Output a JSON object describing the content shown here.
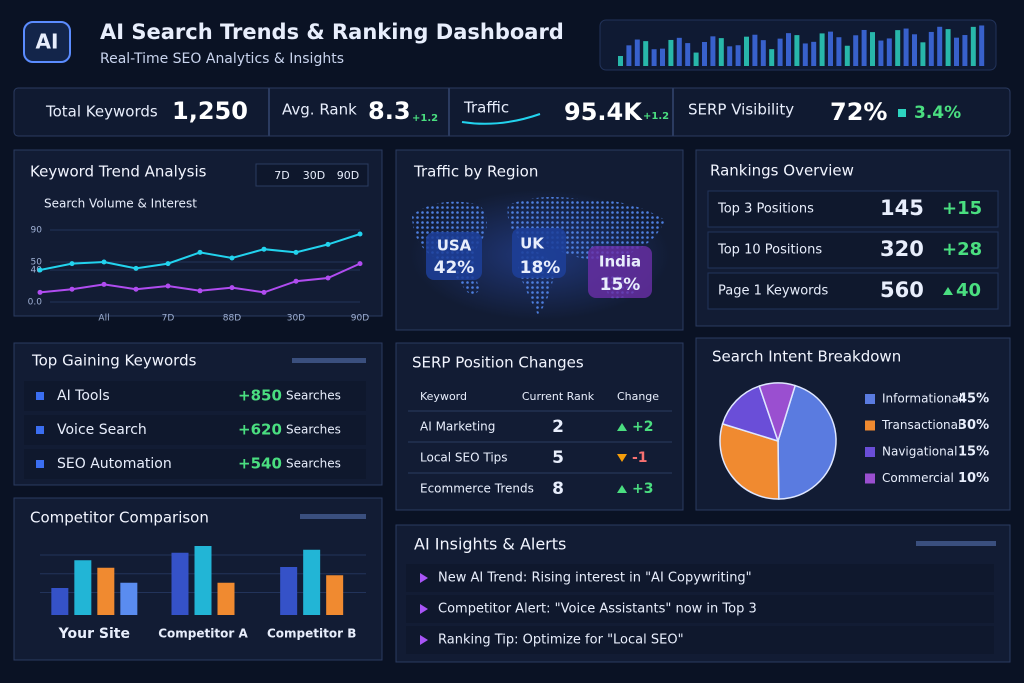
{
  "header": {
    "logo": "AI",
    "title": "AI Search Trends & Ranking Dashboard",
    "subtitle": "Real-Time SEO Analytics & Insights"
  },
  "kpis": [
    {
      "label": "Total Keywords",
      "value": "1,250"
    },
    {
      "label": "Avg. Rank",
      "value": "8.3",
      "delta": "+1.2"
    },
    {
      "label": "Traffic",
      "value": "95.4K",
      "delta": "+1.2"
    },
    {
      "label": "SERP Visibility",
      "value": "72%",
      "delta": "3.4%"
    }
  ],
  "keyword_trend": {
    "title": "Keyword Trend Analysis",
    "ranges": [
      "7D",
      "30D",
      "90D"
    ],
    "chart_data": {
      "type": "line",
      "subtitle": "Search Volume & Interest",
      "x": [
        0,
        1,
        2,
        3,
        4,
        5,
        6,
        7,
        8,
        9,
        10
      ],
      "xlim": [
        0,
        10
      ],
      "xticks": [
        {
          "value": 2,
          "label": "All"
        },
        {
          "value": 4,
          "label": "7D"
        },
        {
          "value": 6,
          "label": "88D"
        },
        {
          "value": 8,
          "label": "30D"
        },
        {
          "value": 10,
          "label": "90D"
        }
      ],
      "ylim": [
        0,
        100
      ],
      "yticks": [
        {
          "value": 0,
          "label": "0.0"
        },
        40,
        50,
        90
      ],
      "series": [
        {
          "color": "#22d3ee",
          "values": [
            40,
            48,
            50,
            42,
            48,
            62,
            55,
            66,
            62,
            72,
            85
          ]
        },
        {
          "color": "#b04cf0",
          "values": [
            12,
            16,
            22,
            16,
            20,
            14,
            18,
            12,
            26,
            30,
            48
          ]
        }
      ]
    }
  },
  "traffic_by_region": {
    "title": "Traffic by Region",
    "regions": [
      {
        "name": "USA",
        "share": "42%"
      },
      {
        "name": "UK",
        "share": "18%"
      },
      {
        "name": "India",
        "share": "15%"
      }
    ]
  },
  "rankings_overview": {
    "title": "Rankings Overview",
    "rows": [
      {
        "label": "Top 3 Positions",
        "value": "145",
        "delta": "+15"
      },
      {
        "label": "Top 10 Positions",
        "value": "320",
        "delta": "+28"
      },
      {
        "label": "Page 1 Keywords",
        "value": "560",
        "delta": "40"
      }
    ]
  },
  "top_gaining": {
    "title": "Top Gaining Keywords",
    "items": [
      {
        "keyword": "AI Tools",
        "change": "+850",
        "unit": "Searches"
      },
      {
        "keyword": "Voice Search",
        "change": "+620",
        "unit": "Searches"
      },
      {
        "keyword": "SEO Automation",
        "change": "+540",
        "unit": "Searches"
      }
    ]
  },
  "serp_changes": {
    "title": "SERP Position Changes",
    "columns": [
      "Keyword",
      "Current Rank",
      "Change"
    ],
    "rows": [
      [
        "AI Marketing",
        "2",
        "+2"
      ],
      [
        "Local SEO Tips",
        "5",
        "-1"
      ],
      [
        "Ecommerce Trends",
        "8",
        "+3"
      ]
    ]
  },
  "search_intent": {
    "title": "Search Intent Breakdown",
    "chart_data": {
      "type": "pie",
      "categories": [
        "Informational",
        "Transactional",
        "Navigational",
        "Commercial"
      ],
      "values": [
        45,
        30,
        15,
        10
      ],
      "value_labels": [
        "45%",
        "30%",
        "15%",
        "10%"
      ],
      "colors": [
        "#5a7be0",
        "#f08a30",
        "#6a4ed8",
        "#9a4fd0"
      ]
    }
  },
  "competitor_comparison": {
    "title": "Competitor Comparison",
    "chart_data": {
      "type": "bar",
      "categories": [
        "Your Site",
        "Competitor A",
        "Competitor B"
      ],
      "ylim": [
        0,
        100
      ],
      "series": [
        {
          "color": "#3552c8",
          "values": [
            36,
            83,
            64
          ]
        },
        {
          "color": "#22b5d6",
          "values": [
            73,
            92,
            87
          ]
        },
        {
          "color": "#f08a30",
          "values": [
            63,
            43,
            53
          ]
        },
        {
          "color": "#5a8cf0",
          "values": [
            43,
            null,
            null
          ]
        }
      ]
    }
  },
  "ai_insights": {
    "title": "AI Insights & Alerts",
    "items": [
      "New AI Trend: Rising interest in \"AI Copywriting\"",
      "Competitor Alert: \"Voice Assistants\" now in Top 3",
      "Ranking Tip: Optimize for \"Local SEO\""
    ]
  }
}
